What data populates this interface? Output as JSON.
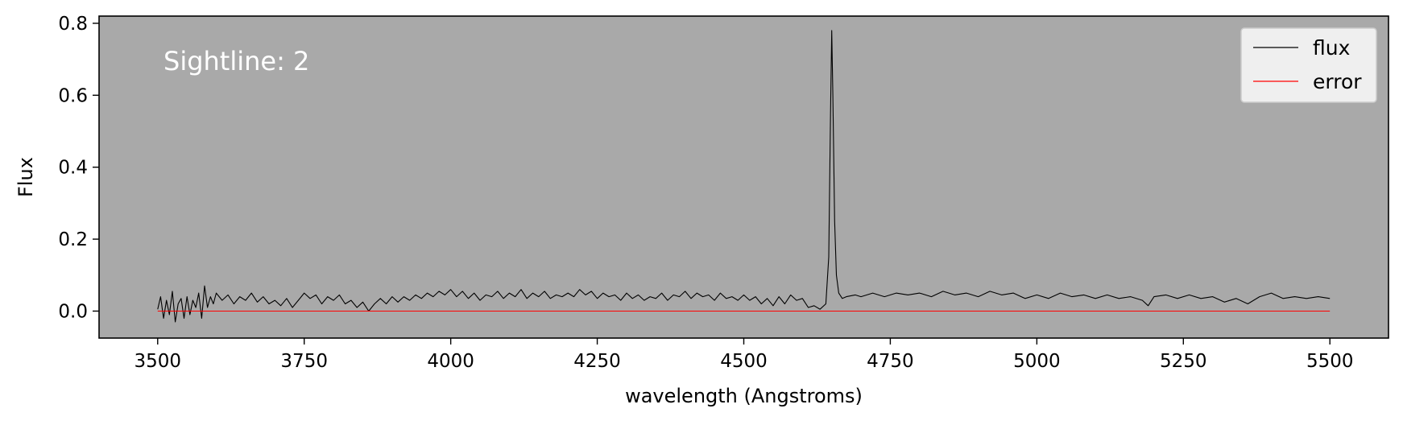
{
  "chart_data": {
    "type": "line",
    "xlabel": "wavelength (Angstroms)",
    "ylabel": "Flux",
    "annotation": "Sightline: 2",
    "xlim": [
      3400,
      5600
    ],
    "ylim": [
      -0.075,
      0.82
    ],
    "xticks": [
      3500,
      3750,
      4000,
      4250,
      4500,
      4750,
      5000,
      5250,
      5500
    ],
    "yticks": [
      0.0,
      0.2,
      0.4,
      0.6,
      0.8
    ],
    "background_color": "#a9a9a9",
    "legend_position": "top-right",
    "grid": false,
    "series": [
      {
        "name": "flux",
        "color": "#000000",
        "points": [
          [
            3500,
            0.005
          ],
          [
            3505,
            0.04
          ],
          [
            3510,
            -0.02
          ],
          [
            3515,
            0.03
          ],
          [
            3520,
            -0.01
          ],
          [
            3525,
            0.055
          ],
          [
            3530,
            -0.03
          ],
          [
            3535,
            0.02
          ],
          [
            3540,
            0.035
          ],
          [
            3545,
            -0.02
          ],
          [
            3550,
            0.04
          ],
          [
            3555,
            -0.01
          ],
          [
            3560,
            0.03
          ],
          [
            3565,
            0.01
          ],
          [
            3570,
            0.05
          ],
          [
            3575,
            -0.02
          ],
          [
            3580,
            0.07
          ],
          [
            3585,
            0.01
          ],
          [
            3590,
            0.04
          ],
          [
            3595,
            0.02
          ],
          [
            3600,
            0.05
          ],
          [
            3610,
            0.03
          ],
          [
            3620,
            0.045
          ],
          [
            3630,
            0.02
          ],
          [
            3640,
            0.04
          ],
          [
            3650,
            0.03
          ],
          [
            3660,
            0.05
          ],
          [
            3670,
            0.025
          ],
          [
            3680,
            0.04
          ],
          [
            3690,
            0.02
          ],
          [
            3700,
            0.03
          ],
          [
            3710,
            0.015
          ],
          [
            3720,
            0.035
          ],
          [
            3730,
            0.01
          ],
          [
            3740,
            0.03
          ],
          [
            3750,
            0.05
          ],
          [
            3760,
            0.035
          ],
          [
            3770,
            0.045
          ],
          [
            3780,
            0.02
          ],
          [
            3790,
            0.04
          ],
          [
            3800,
            0.03
          ],
          [
            3810,
            0.045
          ],
          [
            3820,
            0.02
          ],
          [
            3830,
            0.03
          ],
          [
            3840,
            0.01
          ],
          [
            3850,
            0.025
          ],
          [
            3860,
            0.0
          ],
          [
            3870,
            0.02
          ],
          [
            3880,
            0.035
          ],
          [
            3890,
            0.02
          ],
          [
            3900,
            0.04
          ],
          [
            3910,
            0.025
          ],
          [
            3920,
            0.04
          ],
          [
            3930,
            0.03
          ],
          [
            3940,
            0.045
          ],
          [
            3950,
            0.035
          ],
          [
            3960,
            0.05
          ],
          [
            3970,
            0.04
          ],
          [
            3980,
            0.055
          ],
          [
            3990,
            0.045
          ],
          [
            4000,
            0.06
          ],
          [
            4010,
            0.04
          ],
          [
            4020,
            0.055
          ],
          [
            4030,
            0.035
          ],
          [
            4040,
            0.05
          ],
          [
            4050,
            0.03
          ],
          [
            4060,
            0.045
          ],
          [
            4070,
            0.04
          ],
          [
            4080,
            0.055
          ],
          [
            4090,
            0.035
          ],
          [
            4100,
            0.05
          ],
          [
            4110,
            0.04
          ],
          [
            4120,
            0.06
          ],
          [
            4130,
            0.035
          ],
          [
            4140,
            0.05
          ],
          [
            4150,
            0.04
          ],
          [
            4160,
            0.055
          ],
          [
            4170,
            0.035
          ],
          [
            4180,
            0.045
          ],
          [
            4190,
            0.04
          ],
          [
            4200,
            0.05
          ],
          [
            4210,
            0.04
          ],
          [
            4220,
            0.06
          ],
          [
            4230,
            0.045
          ],
          [
            4240,
            0.055
          ],
          [
            4250,
            0.035
          ],
          [
            4260,
            0.05
          ],
          [
            4270,
            0.04
          ],
          [
            4280,
            0.045
          ],
          [
            4290,
            0.03
          ],
          [
            4300,
            0.05
          ],
          [
            4310,
            0.035
          ],
          [
            4320,
            0.045
          ],
          [
            4330,
            0.03
          ],
          [
            4340,
            0.04
          ],
          [
            4350,
            0.035
          ],
          [
            4360,
            0.05
          ],
          [
            4370,
            0.03
          ],
          [
            4380,
            0.045
          ],
          [
            4390,
            0.04
          ],
          [
            4400,
            0.055
          ],
          [
            4410,
            0.035
          ],
          [
            4420,
            0.05
          ],
          [
            4430,
            0.04
          ],
          [
            4440,
            0.045
          ],
          [
            4450,
            0.03
          ],
          [
            4460,
            0.05
          ],
          [
            4470,
            0.035
          ],
          [
            4480,
            0.04
          ],
          [
            4490,
            0.03
          ],
          [
            4500,
            0.045
          ],
          [
            4510,
            0.03
          ],
          [
            4520,
            0.04
          ],
          [
            4530,
            0.02
          ],
          [
            4540,
            0.035
          ],
          [
            4550,
            0.015
          ],
          [
            4560,
            0.04
          ],
          [
            4570,
            0.02
          ],
          [
            4580,
            0.045
          ],
          [
            4590,
            0.03
          ],
          [
            4600,
            0.035
          ],
          [
            4610,
            0.01
          ],
          [
            4620,
            0.015
          ],
          [
            4630,
            0.005
          ],
          [
            4640,
            0.02
          ],
          [
            4645,
            0.15
          ],
          [
            4648,
            0.55
          ],
          [
            4650,
            0.78
          ],
          [
            4652,
            0.6
          ],
          [
            4655,
            0.25
          ],
          [
            4658,
            0.1
          ],
          [
            4662,
            0.05
          ],
          [
            4668,
            0.035
          ],
          [
            4675,
            0.04
          ],
          [
            4690,
            0.045
          ],
          [
            4700,
            0.04
          ],
          [
            4720,
            0.05
          ],
          [
            4740,
            0.04
          ],
          [
            4760,
            0.05
          ],
          [
            4780,
            0.045
          ],
          [
            4800,
            0.05
          ],
          [
            4820,
            0.04
          ],
          [
            4840,
            0.055
          ],
          [
            4860,
            0.045
          ],
          [
            4880,
            0.05
          ],
          [
            4900,
            0.04
          ],
          [
            4920,
            0.055
          ],
          [
            4940,
            0.045
          ],
          [
            4960,
            0.05
          ],
          [
            4980,
            0.035
          ],
          [
            5000,
            0.045
          ],
          [
            5020,
            0.035
          ],
          [
            5040,
            0.05
          ],
          [
            5060,
            0.04
          ],
          [
            5080,
            0.045
          ],
          [
            5100,
            0.035
          ],
          [
            5120,
            0.045
          ],
          [
            5140,
            0.035
          ],
          [
            5160,
            0.04
          ],
          [
            5180,
            0.03
          ],
          [
            5190,
            0.015
          ],
          [
            5200,
            0.04
          ],
          [
            5220,
            0.045
          ],
          [
            5240,
            0.035
          ],
          [
            5260,
            0.045
          ],
          [
            5280,
            0.035
          ],
          [
            5300,
            0.04
          ],
          [
            5320,
            0.025
          ],
          [
            5340,
            0.035
          ],
          [
            5360,
            0.02
          ],
          [
            5380,
            0.04
          ],
          [
            5400,
            0.05
          ],
          [
            5420,
            0.035
          ],
          [
            5440,
            0.04
          ],
          [
            5460,
            0.035
          ],
          [
            5480,
            0.04
          ],
          [
            5500,
            0.035
          ]
        ]
      },
      {
        "name": "error",
        "color": "#ff0000",
        "points": [
          [
            3500,
            0.0
          ],
          [
            5500,
            0.0
          ]
        ]
      }
    ]
  }
}
